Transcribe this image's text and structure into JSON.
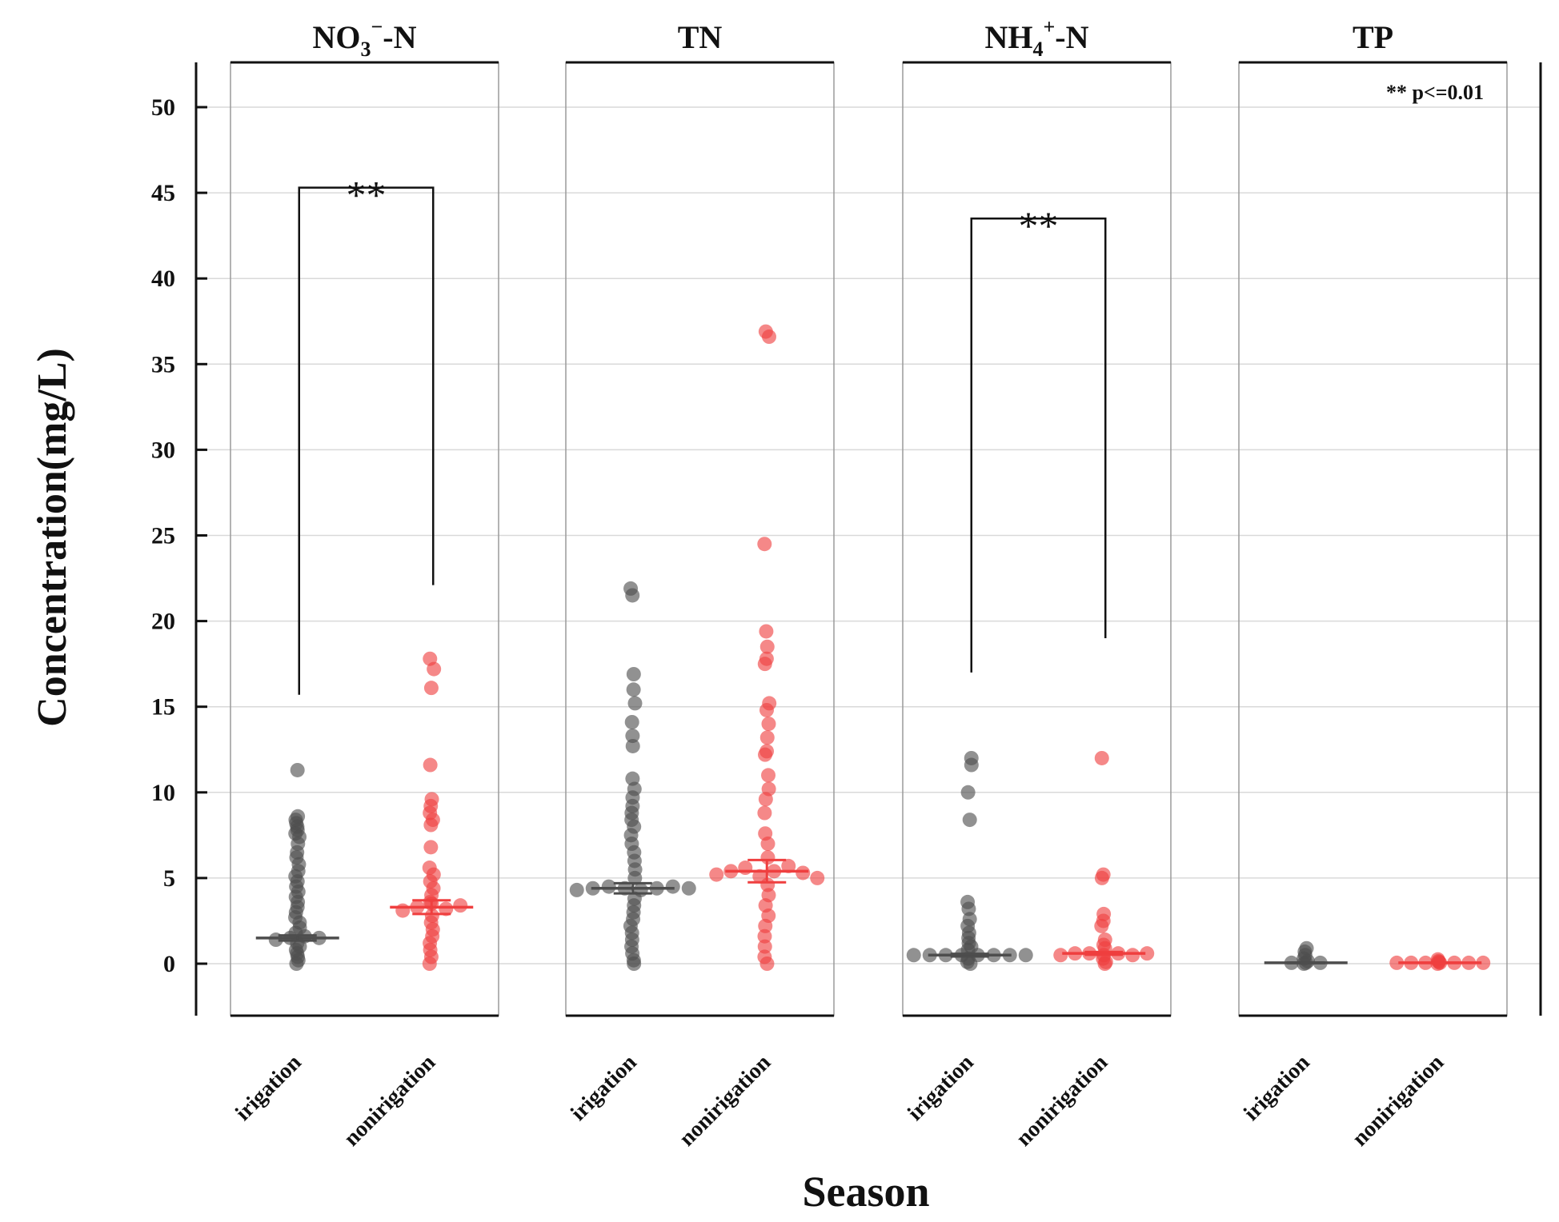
{
  "chart_data": {
    "type": "scatter",
    "subtype": "dot-strip with mean ± error bars, faceted",
    "ylabel": "Concentration(mg/L)",
    "xlabel": "Season",
    "ylim": [
      -3,
      53
    ],
    "yticks": [
      0,
      5,
      10,
      15,
      20,
      25,
      30,
      35,
      40,
      45,
      50
    ],
    "ytick_labels": [
      "0",
      "5",
      "10",
      "15",
      "20",
      "25",
      "30",
      "35",
      "40",
      "45",
      "50"
    ],
    "grid": true,
    "categories": [
      "irigation",
      "nonirigation"
    ],
    "series_colors": {
      "irigation": "#4d4d4d",
      "nonirigation": "#ef3f3f"
    },
    "legend_note": "** p<=0.01",
    "panels": [
      {
        "title": "NO3⁻-N",
        "title_base": "NO",
        "title_sub": "3",
        "title_sup": "−",
        "title_suffix": "-N",
        "groups": [
          {
            "category": "irigation",
            "mean": 1.5,
            "error": 0.15,
            "center_spread": [
              1.4,
              1.5,
              1.6,
              1.5
            ],
            "points": [
              11.3,
              8.6,
              8.4,
              8.2,
              8.0,
              7.8,
              7.6,
              7.4,
              7.0,
              6.5,
              6.2,
              5.8,
              5.4,
              5.1,
              4.8,
              4.5,
              4.2,
              3.9,
              3.6,
              3.3,
              3.0,
              2.7,
              2.4,
              2.1,
              1.8,
              1.2,
              1.0,
              0.8,
              0.6,
              0.4,
              0.2,
              0.0
            ]
          },
          {
            "category": "nonirigation",
            "mean": 3.3,
            "error": 0.4,
            "center_spread": [
              3.1,
              3.3,
              3.5,
              3.2,
              3.4
            ],
            "points": [
              17.8,
              17.2,
              16.1,
              11.6,
              9.6,
              9.2,
              8.8,
              8.4,
              8.1,
              6.8,
              5.6,
              5.2,
              4.8,
              4.4,
              4.0,
              3.6,
              2.8,
              2.4,
              2.0,
              1.6,
              1.2,
              0.8,
              0.4,
              0.0
            ]
          }
        ],
        "significance": {
          "label": "**",
          "bracket_y": 45.3,
          "left_drop": 15.7,
          "right_drop": 22.1
        }
      },
      {
        "title": "TN",
        "groups": [
          {
            "category": "irigation",
            "mean": 4.4,
            "error": 0.3,
            "center_spread": [
              4.3,
              4.4,
              4.5,
              4.4,
              4.3,
              4.4,
              4.5,
              4.4
            ],
            "points": [
              21.9,
              21.5,
              16.9,
              16.0,
              15.2,
              14.1,
              13.3,
              12.7,
              10.8,
              10.2,
              9.7,
              9.2,
              8.8,
              8.4,
              8.0,
              7.5,
              7.0,
              6.5,
              6.0,
              5.5,
              5.0,
              3.8,
              3.4,
              3.0,
              2.6,
              2.2,
              1.8,
              1.4,
              1.0,
              0.6,
              0.2,
              0.0
            ]
          },
          {
            "category": "nonirigation",
            "mean": 5.4,
            "error": 0.65,
            "center_spread": [
              5.2,
              5.4,
              5.6,
              5.1,
              5.4,
              5.7,
              5.3,
              5.0
            ],
            "points": [
              36.9,
              36.6,
              24.5,
              19.4,
              18.5,
              17.8,
              17.5,
              15.2,
              14.8,
              14.0,
              13.2,
              12.4,
              12.2,
              11.0,
              10.2,
              9.6,
              8.8,
              7.6,
              7.0,
              6.2,
              4.6,
              4.0,
              3.4,
              2.8,
              2.2,
              1.6,
              1.0,
              0.4,
              0.0
            ]
          }
        ]
      },
      {
        "title": "NH4⁺-N",
        "title_base": "NH",
        "title_sub": "4",
        "title_sup": "+",
        "title_suffix": "-N",
        "groups": [
          {
            "category": "irigation",
            "mean": 0.5,
            "error": 0.08,
            "center_spread": [
              0.5,
              0.5,
              0.5,
              0.5,
              0.5,
              0.5,
              0.5,
              0.5
            ],
            "points": [
              12.0,
              11.6,
              10.0,
              8.4,
              3.6,
              3.2,
              2.6,
              2.2,
              1.8,
              1.5,
              1.2,
              1.0,
              0.8,
              0.3,
              0.1,
              0.0
            ]
          },
          {
            "category": "nonirigation",
            "mean": 0.6,
            "error": 0.08,
            "center_spread": [
              0.5,
              0.6,
              0.6,
              0.5,
              0.6,
              0.5,
              0.6
            ],
            "points": [
              12.0,
              5.2,
              5.0,
              2.9,
              2.5,
              2.2,
              1.4,
              1.1,
              0.9,
              0.3,
              0.1,
              0.0
            ]
          }
        ],
        "significance": {
          "label": "**",
          "bracket_y": 43.5,
          "left_drop": 17.0,
          "right_drop": 19.0
        }
      },
      {
        "title": "TP",
        "groups": [
          {
            "category": "irigation",
            "mean": 0.05,
            "error": 0.02,
            "center_spread": [
              0.05,
              0.05,
              0.05
            ],
            "points": [
              0.9,
              0.7,
              0.5,
              0.3,
              0.15,
              0.0
            ]
          },
          {
            "category": "nonirigation",
            "mean": 0.05,
            "error": 0.01,
            "center_spread": [
              0.05,
              0.05,
              0.05,
              0.05,
              0.05,
              0.05,
              0.05
            ],
            "points": [
              0.25,
              0.15,
              0.1,
              0.0
            ]
          }
        ]
      }
    ]
  }
}
